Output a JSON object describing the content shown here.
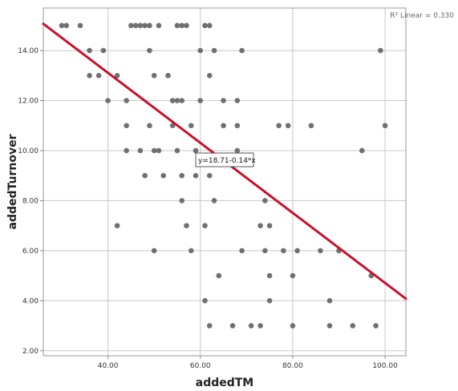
{
  "chart_data": {
    "type": "scatter",
    "xlabel": "addedTM",
    "ylabel": "addedTurnover",
    "xlim": [
      26,
      104.5
    ],
    "ylim": [
      1.8,
      15.7
    ],
    "x_ticks": [
      40,
      60,
      80,
      100
    ],
    "x_tick_labels": [
      "40.00",
      "60.00",
      "80.00",
      "100.00"
    ],
    "y_ticks": [
      2,
      4,
      6,
      8,
      10,
      12,
      14
    ],
    "y_tick_labels": [
      "2.00",
      "4.00",
      "6.00",
      "8.00",
      "10.00",
      "12.00",
      "14.00"
    ],
    "grid": "y-major and x-major lines",
    "r2_label": "R² Linear = 0.330",
    "fit_equation": "y=18.71-0.14*x",
    "fit_line": {
      "intercept": 18.71,
      "slope": -0.14
    },
    "colors": {
      "points": "#707070",
      "fit_line": "#c8102e",
      "grid": "#c8c8c8"
    },
    "points": [
      {
        "x": 30,
        "y": 15
      },
      {
        "x": 31,
        "y": 15
      },
      {
        "x": 34,
        "y": 15
      },
      {
        "x": 45,
        "y": 15
      },
      {
        "x": 46,
        "y": 15
      },
      {
        "x": 47,
        "y": 15
      },
      {
        "x": 48,
        "y": 15
      },
      {
        "x": 49,
        "y": 15
      },
      {
        "x": 51,
        "y": 15
      },
      {
        "x": 55,
        "y": 15
      },
      {
        "x": 56,
        "y": 15
      },
      {
        "x": 57,
        "y": 15
      },
      {
        "x": 61,
        "y": 15
      },
      {
        "x": 62,
        "y": 15
      },
      {
        "x": 36,
        "y": 14
      },
      {
        "x": 39,
        "y": 14
      },
      {
        "x": 49,
        "y": 14
      },
      {
        "x": 60,
        "y": 14
      },
      {
        "x": 63,
        "y": 14
      },
      {
        "x": 69,
        "y": 14
      },
      {
        "x": 99,
        "y": 14
      },
      {
        "x": 36,
        "y": 13
      },
      {
        "x": 38,
        "y": 13
      },
      {
        "x": 42,
        "y": 13
      },
      {
        "x": 50,
        "y": 13
      },
      {
        "x": 53,
        "y": 13
      },
      {
        "x": 62,
        "y": 13
      },
      {
        "x": 40,
        "y": 12
      },
      {
        "x": 44,
        "y": 12
      },
      {
        "x": 54,
        "y": 12
      },
      {
        "x": 55,
        "y": 12
      },
      {
        "x": 56,
        "y": 12
      },
      {
        "x": 60,
        "y": 12
      },
      {
        "x": 65,
        "y": 12
      },
      {
        "x": 68,
        "y": 12
      },
      {
        "x": 44,
        "y": 11
      },
      {
        "x": 49,
        "y": 11
      },
      {
        "x": 54,
        "y": 11
      },
      {
        "x": 58,
        "y": 11
      },
      {
        "x": 65,
        "y": 11
      },
      {
        "x": 68,
        "y": 11
      },
      {
        "x": 77,
        "y": 11
      },
      {
        "x": 79,
        "y": 11
      },
      {
        "x": 84,
        "y": 11
      },
      {
        "x": 100,
        "y": 11
      },
      {
        "x": 44,
        "y": 10
      },
      {
        "x": 47,
        "y": 10
      },
      {
        "x": 50,
        "y": 10
      },
      {
        "x": 51,
        "y": 10
      },
      {
        "x": 55,
        "y": 10
      },
      {
        "x": 59,
        "y": 10
      },
      {
        "x": 68,
        "y": 10
      },
      {
        "x": 95,
        "y": 10
      },
      {
        "x": 48,
        "y": 9
      },
      {
        "x": 52,
        "y": 9
      },
      {
        "x": 56,
        "y": 9
      },
      {
        "x": 59,
        "y": 9
      },
      {
        "x": 62,
        "y": 9
      },
      {
        "x": 56,
        "y": 8
      },
      {
        "x": 63,
        "y": 8
      },
      {
        "x": 74,
        "y": 8
      },
      {
        "x": 42,
        "y": 7
      },
      {
        "x": 57,
        "y": 7
      },
      {
        "x": 61,
        "y": 7
      },
      {
        "x": 73,
        "y": 7
      },
      {
        "x": 75,
        "y": 7
      },
      {
        "x": 50,
        "y": 6
      },
      {
        "x": 58,
        "y": 6
      },
      {
        "x": 69,
        "y": 6
      },
      {
        "x": 74,
        "y": 6
      },
      {
        "x": 78,
        "y": 6
      },
      {
        "x": 81,
        "y": 6
      },
      {
        "x": 86,
        "y": 6
      },
      {
        "x": 90,
        "y": 6
      },
      {
        "x": 64,
        "y": 5
      },
      {
        "x": 75,
        "y": 5
      },
      {
        "x": 80,
        "y": 5
      },
      {
        "x": 97,
        "y": 5
      },
      {
        "x": 61,
        "y": 4
      },
      {
        "x": 75,
        "y": 4
      },
      {
        "x": 88,
        "y": 4
      },
      {
        "x": 62,
        "y": 3
      },
      {
        "x": 67,
        "y": 3
      },
      {
        "x": 71,
        "y": 3
      },
      {
        "x": 73,
        "y": 3
      },
      {
        "x": 80,
        "y": 3
      },
      {
        "x": 88,
        "y": 3
      },
      {
        "x": 93,
        "y": 3
      },
      {
        "x": 98,
        "y": 3
      }
    ]
  }
}
